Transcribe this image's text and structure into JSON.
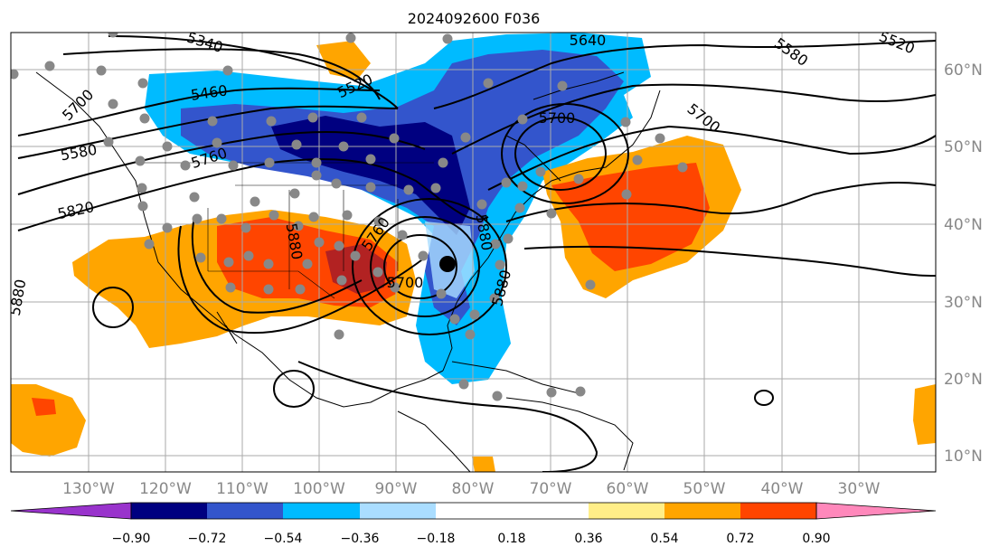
{
  "title": "2024092600 F036",
  "map": {
    "lon_labels": [
      "130°W",
      "120°W",
      "110°W",
      "100°W",
      "90°W",
      "80°W",
      "70°W",
      "60°W",
      "50°W",
      "40°W",
      "30°W"
    ],
    "lat_labels": [
      "60°N",
      "50°N",
      "40°N",
      "30°N",
      "20°N",
      "10°N"
    ],
    "contour_labels": [
      "5340",
      "5460",
      "5520",
      "5580",
      "5580",
      "5520",
      "5640",
      "5700",
      "5700",
      "5760",
      "5700",
      "5760",
      "5820",
      "5880",
      "5880",
      "5880",
      "5880",
      "5700"
    ],
    "storm_marker": "black-dot",
    "station_marker": "gray-dot"
  },
  "colorbar": {
    "ticks": [
      "−0.90",
      "−0.72",
      "−0.54",
      "−0.36",
      "−0.18",
      "0.18",
      "0.36",
      "0.54",
      "0.72",
      "0.90"
    ],
    "colors": [
      "#9933cc",
      "#000080",
      "#3355cc",
      "#00bbff",
      "#aaddff",
      "#ffffff",
      "#ffee88",
      "#ffa500",
      "#ff4500",
      "#b22222",
      "#ff88bb"
    ]
  }
}
